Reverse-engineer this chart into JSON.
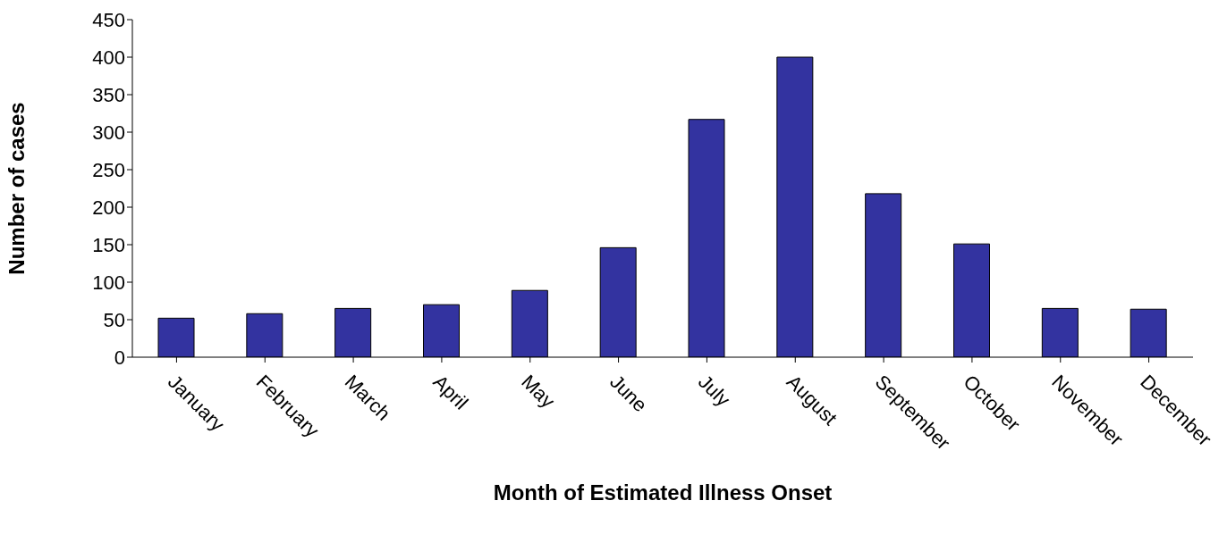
{
  "chart_data": {
    "type": "bar",
    "xlabel": "Month of Estimated Illness Onset",
    "ylabel": "Number of cases",
    "categories": [
      "January",
      "February",
      "March",
      "April",
      "May",
      "June",
      "July",
      "August",
      "September",
      "October",
      "November",
      "December"
    ],
    "values": [
      52,
      58,
      65,
      70,
      89,
      146,
      317,
      400,
      218,
      151,
      65,
      64
    ],
    "color": "#3333a0",
    "ylim": [
      0,
      450
    ],
    "yticks": [
      0,
      50,
      100,
      150,
      200,
      250,
      300,
      350,
      400,
      450
    ],
    "grid": false,
    "legend": false
  }
}
